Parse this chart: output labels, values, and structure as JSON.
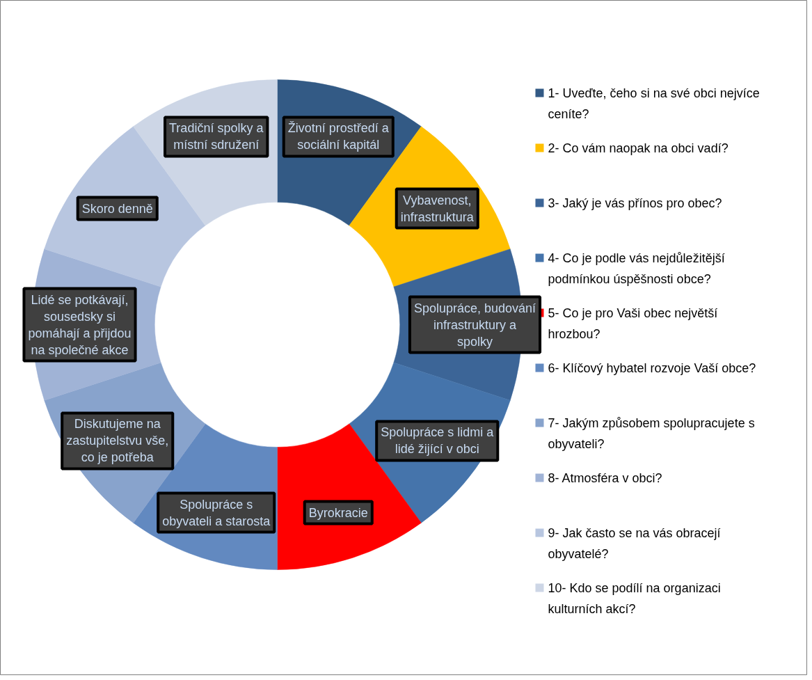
{
  "chart_data": {
    "type": "donut",
    "categories": [
      "1- Uveďte, čeho si na své obci nejvíce ceníte?",
      "2- Co vám naopak na obci vadí?",
      "3- Jaký je vás přínos pro obec?",
      "4- Co je podle vás nejdůležitější podmínkou úspěšnosti obce?",
      "5- Co je pro Vaši obec největší hrozbou?",
      "6- Klíčový hybatel rozvoje Vaší obce?",
      "7- Jakým způsobem spolupracujete s obyvateli?",
      "8- Atmosféra v obci?",
      "9- Jak často se na vás obracejí obyvatelé?",
      "10- Kdo se podílí na organizaci kulturních akcí?"
    ],
    "values": [
      10,
      10,
      10,
      10,
      10,
      10,
      10,
      10,
      10,
      10
    ],
    "colors": [
      "#335a85",
      "#ffc000",
      "#3c6597",
      "#4574ab",
      "#ff0000",
      "#6289c0",
      "#88a3cc",
      "#a0b3d6",
      "#b8c6e0",
      "#cdd6e6"
    ],
    "value_labels": [
      "Životní prostředí a sociální kapitál",
      "Vybavenost, infrastruktura",
      "Spolupráce, budování infrastruktury a spolky",
      "Spolupráce s lidmi a lidé žijící v obci",
      "Byrokracie",
      "Spolupráce s obyvateli a starosta",
      "Diskutujeme na zastupitelstvu vše, co je potřeba",
      "Lidé se potkávají, sousedsky si pomáhají a přijdou na společné akce",
      "Skoro denně",
      "Tradiční spolky a místní sdružení"
    ],
    "legend": "right"
  }
}
